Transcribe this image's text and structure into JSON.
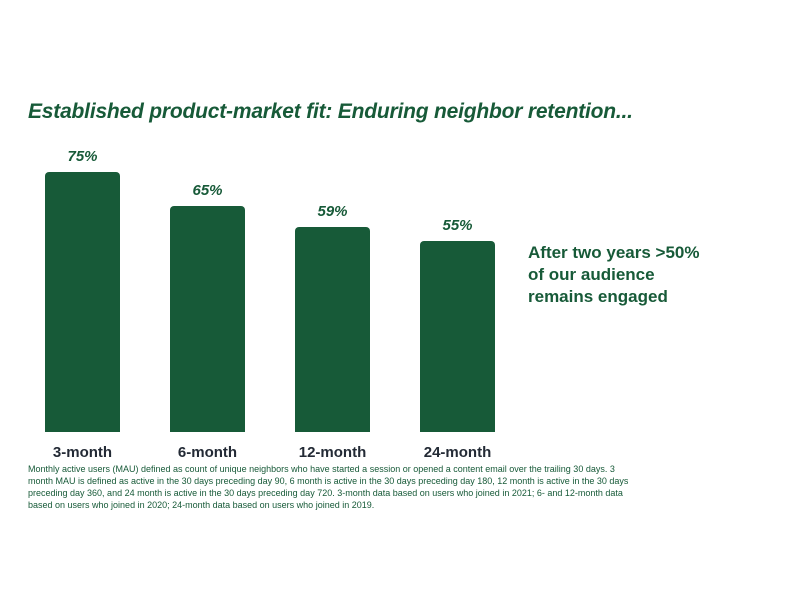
{
  "title": "Established product-market fit: Enduring neighbor retention...",
  "annotation": "After two years >50% of our audience remains engaged",
  "footnote": "Monthly active users (MAU) defined as count of unique neighbors who have started a session or opened a content email over the trailing 30 days. 3 month MAU is defined as active in the 30 days preceding day 90, 6 month is active in the 30 days preceding day 180, 12 month is active in the 30 days preceding day 360, and 24 month is active in the 30 days preceding day 720. 3-month data based on users who joined in 2021; 6- and 12-month data based on users who joined in 2020; 24-month data based on users who joined in 2019.",
  "colors": {
    "green": "#175A38",
    "text-dark": "#232A35",
    "background": "#FFFFFF"
  },
  "chart_data": {
    "type": "bar",
    "title": "Established product-market fit: Enduring neighbor retention...",
    "categories": [
      "3-month",
      "6-month",
      "12-month",
      "24-month"
    ],
    "values": [
      75,
      65,
      59,
      55
    ],
    "value_labels": [
      "75%",
      "65%",
      "59%",
      "55%"
    ],
    "xlabel": "",
    "ylabel": "",
    "ylim": [
      0,
      100
    ],
    "grid": false,
    "legend": false,
    "annotation": "After two years >50% of our audience remains engaged"
  }
}
